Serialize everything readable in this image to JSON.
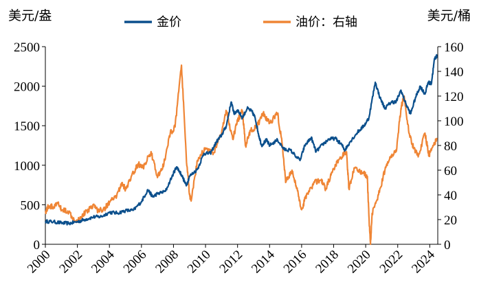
{
  "chart_data": {
    "type": "line",
    "left_unit": "美元/盎",
    "right_unit": "美元/桶",
    "x_range": [
      2000,
      2024.5
    ],
    "x_ticks": [
      "2000",
      "2002",
      "2004",
      "2006",
      "2008",
      "2010",
      "2012",
      "2014",
      "2016",
      "2018",
      "2020",
      "2022",
      "2024"
    ],
    "y_left": {
      "range": [
        0,
        2500
      ],
      "ticks": [
        0,
        500,
        1000,
        1500,
        2000,
        2500
      ]
    },
    "y_right": {
      "range": [
        0,
        160
      ],
      "ticks": [
        0,
        20,
        40,
        60,
        80,
        100,
        120,
        140,
        160
      ]
    },
    "legend_position": "top",
    "series": [
      {
        "name": "金价",
        "axis": "left",
        "color": "#0b4f8c",
        "points": [
          [
            2000.0,
            290
          ],
          [
            2000.5,
            285
          ],
          [
            2001.0,
            270
          ],
          [
            2001.5,
            265
          ],
          [
            2002.0,
            285
          ],
          [
            2002.5,
            315
          ],
          [
            2003.0,
            345
          ],
          [
            2003.5,
            350
          ],
          [
            2004.0,
            405
          ],
          [
            2004.5,
            395
          ],
          [
            2005.0,
            425
          ],
          [
            2005.5,
            430
          ],
          [
            2006.0,
            540
          ],
          [
            2006.4,
            690
          ],
          [
            2006.7,
            600
          ],
          [
            2007.0,
            640
          ],
          [
            2007.5,
            670
          ],
          [
            2008.0,
            900
          ],
          [
            2008.2,
            980
          ],
          [
            2008.5,
            880
          ],
          [
            2008.8,
            740
          ],
          [
            2009.0,
            860
          ],
          [
            2009.5,
            950
          ],
          [
            2009.9,
            1150
          ],
          [
            2010.3,
            1150
          ],
          [
            2010.7,
            1300
          ],
          [
            2011.0,
            1380
          ],
          [
            2011.3,
            1500
          ],
          [
            2011.6,
            1800
          ],
          [
            2011.8,
            1650
          ],
          [
            2012.0,
            1700
          ],
          [
            2012.3,
            1600
          ],
          [
            2012.6,
            1720
          ],
          [
            2012.9,
            1680
          ],
          [
            2013.1,
            1600
          ],
          [
            2013.3,
            1400
          ],
          [
            2013.5,
            1250
          ],
          [
            2013.8,
            1320
          ],
          [
            2014.0,
            1250
          ],
          [
            2014.5,
            1320
          ],
          [
            2014.9,
            1200
          ],
          [
            2015.3,
            1190
          ],
          [
            2015.9,
            1060
          ],
          [
            2016.2,
            1250
          ],
          [
            2016.6,
            1350
          ],
          [
            2016.9,
            1170
          ],
          [
            2017.3,
            1260
          ],
          [
            2017.7,
            1330
          ],
          [
            2018.1,
            1340
          ],
          [
            2018.5,
            1260
          ],
          [
            2018.7,
            1190
          ],
          [
            2019.0,
            1290
          ],
          [
            2019.5,
            1420
          ],
          [
            2019.9,
            1500
          ],
          [
            2020.2,
            1600
          ],
          [
            2020.6,
            2050
          ],
          [
            2020.9,
            1850
          ],
          [
            2021.2,
            1720
          ],
          [
            2021.6,
            1800
          ],
          [
            2021.9,
            1800
          ],
          [
            2022.2,
            1950
          ],
          [
            2022.5,
            1780
          ],
          [
            2022.8,
            1650
          ],
          [
            2023.1,
            1850
          ],
          [
            2023.4,
            2000
          ],
          [
            2023.7,
            1900
          ],
          [
            2023.9,
            2050
          ],
          [
            2024.1,
            2030
          ],
          [
            2024.3,
            2350
          ],
          [
            2024.45,
            2380
          ]
        ]
      },
      {
        "name": "油价：右轴",
        "axis": "right",
        "color": "#ef8535",
        "points": [
          [
            2000.0,
            26
          ],
          [
            2000.2,
            31
          ],
          [
            2000.5,
            30
          ],
          [
            2000.8,
            33
          ],
          [
            2001.0,
            28
          ],
          [
            2001.4,
            27
          ],
          [
            2001.9,
            19
          ],
          [
            2002.2,
            22
          ],
          [
            2002.6,
            27
          ],
          [
            2003.0,
            32
          ],
          [
            2003.3,
            27
          ],
          [
            2003.7,
            29
          ],
          [
            2004.0,
            34
          ],
          [
            2004.4,
            38
          ],
          [
            2004.8,
            50
          ],
          [
            2005.0,
            44
          ],
          [
            2005.5,
            58
          ],
          [
            2005.8,
            65
          ],
          [
            2006.1,
            62
          ],
          [
            2006.6,
            75
          ],
          [
            2007.0,
            54
          ],
          [
            2007.4,
            65
          ],
          [
            2007.8,
            90
          ],
          [
            2008.1,
            95
          ],
          [
            2008.5,
            145
          ],
          [
            2008.8,
            70
          ],
          [
            2009.0,
            40
          ],
          [
            2009.1,
            35
          ],
          [
            2009.5,
            68
          ],
          [
            2010.0,
            78
          ],
          [
            2010.5,
            74
          ],
          [
            2011.0,
            90
          ],
          [
            2011.3,
            108
          ],
          [
            2011.7,
            85
          ],
          [
            2012.0,
            100
          ],
          [
            2012.3,
            108
          ],
          [
            2012.5,
            80
          ],
          [
            2012.8,
            92
          ],
          [
            2013.2,
            95
          ],
          [
            2013.6,
            106
          ],
          [
            2014.0,
            98
          ],
          [
            2014.5,
            106
          ],
          [
            2014.8,
            80
          ],
          [
            2015.0,
            50
          ],
          [
            2015.4,
            60
          ],
          [
            2015.7,
            45
          ],
          [
            2016.0,
            28
          ],
          [
            2016.3,
            40
          ],
          [
            2016.8,
            50
          ],
          [
            2017.2,
            52
          ],
          [
            2017.5,
            45
          ],
          [
            2017.9,
            58
          ],
          [
            2018.3,
            68
          ],
          [
            2018.8,
            75
          ],
          [
            2018.95,
            45
          ],
          [
            2019.3,
            62
          ],
          [
            2019.8,
            58
          ],
          [
            2020.1,
            55
          ],
          [
            2020.2,
            23
          ],
          [
            2020.3,
            0
          ],
          [
            2020.4,
            25
          ],
          [
            2020.8,
            40
          ],
          [
            2021.2,
            60
          ],
          [
            2021.6,
            72
          ],
          [
            2021.9,
            75
          ],
          [
            2022.2,
            110
          ],
          [
            2022.4,
            120
          ],
          [
            2022.7,
            90
          ],
          [
            2023.0,
            78
          ],
          [
            2023.3,
            72
          ],
          [
            2023.7,
            90
          ],
          [
            2023.95,
            72
          ],
          [
            2024.2,
            80
          ],
          [
            2024.45,
            85
          ]
        ]
      }
    ]
  }
}
